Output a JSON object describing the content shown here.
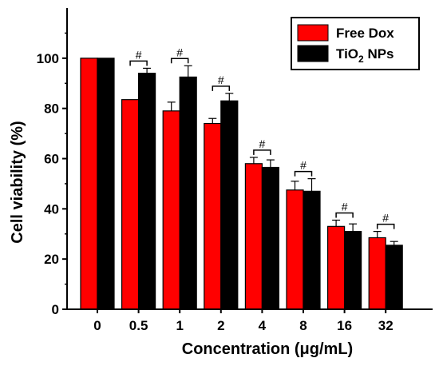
{
  "chart_data": {
    "type": "bar",
    "xlabel": "Concentration (μg/mL)",
    "ylabel": "Cell viability (%)",
    "ylim": [
      0,
      120
    ],
    "yticks": [
      0,
      20,
      40,
      60,
      80,
      100
    ],
    "categories": [
      "0",
      "0.5",
      "1",
      "2",
      "4",
      "8",
      "16",
      "32"
    ],
    "series": [
      {
        "name": "Free Dox",
        "color": "#ff0000",
        "values": [
          100,
          83.5,
          79,
          74,
          58,
          47.5,
          33,
          28.5
        ],
        "errors": [
          0,
          0,
          3.5,
          2,
          2.5,
          3.5,
          2.5,
          2.5
        ]
      },
      {
        "name": "TiO2 NPs",
        "name_parts": [
          "TiO",
          "2",
          " NPs"
        ],
        "color": "#000000",
        "values": [
          100,
          94,
          92.5,
          83,
          56.5,
          47,
          31,
          25.5
        ],
        "errors": [
          0,
          2,
          4.5,
          3,
          3,
          5,
          3,
          1.5
        ]
      }
    ],
    "significance": {
      "label": "#",
      "categories": [
        "0.5",
        "1",
        "2",
        "4",
        "8",
        "16",
        "32"
      ]
    },
    "legend_position": "top-right",
    "grid": false
  }
}
